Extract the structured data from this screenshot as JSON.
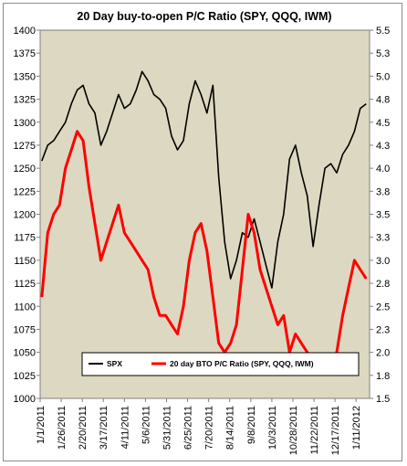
{
  "chart_data": {
    "type": "line",
    "title": "20 Day buy-to-open P/C Ratio (SPY, QQQ, IWM)",
    "xlabel": "",
    "ylabel": "",
    "ylim": [
      1000,
      1400
    ],
    "y2lim": [
      1.5,
      5.5
    ],
    "yticks": [
      1000,
      1025,
      1050,
      1075,
      1100,
      1125,
      1150,
      1175,
      1200,
      1225,
      1250,
      1275,
      1300,
      1325,
      1350,
      1375,
      1400
    ],
    "y2ticks": [
      "1.5",
      "1.8",
      "2.0",
      "2.3",
      "2.5",
      "2.8",
      "3.0",
      "3.3",
      "3.5",
      "3.8",
      "4.0",
      "4.3",
      "4.5",
      "4.8",
      "5.0",
      "5.3",
      "5.5"
    ],
    "xticks": [
      "1/1/2011",
      "1/26/2011",
      "2/20/2011",
      "3/17/2011",
      "4/11/2011",
      "5/6/2011",
      "5/31/2011",
      "6/25/2011",
      "7/20/2011",
      "8/14/2011",
      "9/8/2011",
      "10/3/2011",
      "10/28/2011",
      "11/22/2011",
      "12/17/2011",
      "1/11/2012"
    ],
    "plot_background": "#ddd8c1",
    "grid": false,
    "legend_position": "bottom",
    "series": [
      {
        "name": "SPX",
        "axis": "left",
        "color": "#000000",
        "x": [
          "2011-01-03",
          "2011-01-10",
          "2011-01-17",
          "2011-01-24",
          "2011-01-31",
          "2011-02-07",
          "2011-02-14",
          "2011-02-21",
          "2011-02-28",
          "2011-03-07",
          "2011-03-14",
          "2011-03-21",
          "2011-03-28",
          "2011-04-04",
          "2011-04-11",
          "2011-04-18",
          "2011-04-25",
          "2011-05-02",
          "2011-05-09",
          "2011-05-16",
          "2011-05-23",
          "2011-05-30",
          "2011-06-06",
          "2011-06-13",
          "2011-06-20",
          "2011-06-27",
          "2011-07-04",
          "2011-07-11",
          "2011-07-18",
          "2011-07-25",
          "2011-08-01",
          "2011-08-08",
          "2011-08-15",
          "2011-08-22",
          "2011-08-29",
          "2011-09-05",
          "2011-09-12",
          "2011-09-19",
          "2011-09-26",
          "2011-10-03",
          "2011-10-10",
          "2011-10-17",
          "2011-10-24",
          "2011-10-31",
          "2011-11-07",
          "2011-11-14",
          "2011-11-21",
          "2011-11-28",
          "2011-12-05",
          "2011-12-12",
          "2011-12-19",
          "2011-12-26",
          "2012-01-02",
          "2012-01-09",
          "2012-01-16",
          "2012-01-23"
        ],
        "values": [
          1258,
          1275,
          1280,
          1290,
          1300,
          1320,
          1335,
          1340,
          1320,
          1310,
          1275,
          1290,
          1310,
          1330,
          1315,
          1320,
          1335,
          1355,
          1345,
          1330,
          1325,
          1315,
          1285,
          1270,
          1280,
          1320,
          1345,
          1330,
          1310,
          1340,
          1240,
          1170,
          1130,
          1150,
          1180,
          1175,
          1195,
          1170,
          1145,
          1120,
          1170,
          1200,
          1260,
          1275,
          1245,
          1220,
          1165,
          1210,
          1250,
          1255,
          1245,
          1265,
          1275,
          1290,
          1315,
          1320
        ]
      },
      {
        "name": "20 day BTO P/C Ratio (SPY, QQQ, IWM)",
        "axis": "right",
        "color": "#ff0000",
        "x": [
          "2011-01-03",
          "2011-01-10",
          "2011-01-17",
          "2011-01-24",
          "2011-01-31",
          "2011-02-07",
          "2011-02-14",
          "2011-02-21",
          "2011-02-28",
          "2011-03-07",
          "2011-03-14",
          "2011-03-21",
          "2011-03-28",
          "2011-04-04",
          "2011-04-11",
          "2011-04-18",
          "2011-04-25",
          "2011-05-02",
          "2011-05-09",
          "2011-05-16",
          "2011-05-23",
          "2011-05-30",
          "2011-06-06",
          "2011-06-13",
          "2011-06-20",
          "2011-06-27",
          "2011-07-04",
          "2011-07-11",
          "2011-07-18",
          "2011-07-25",
          "2011-08-01",
          "2011-08-08",
          "2011-08-15",
          "2011-08-22",
          "2011-08-29",
          "2011-09-05",
          "2011-09-12",
          "2011-09-19",
          "2011-09-26",
          "2011-10-03",
          "2011-10-10",
          "2011-10-17",
          "2011-10-24",
          "2011-10-31",
          "2011-11-07",
          "2011-11-14",
          "2011-11-21",
          "2011-11-28",
          "2011-12-05",
          "2011-12-12",
          "2011-12-19",
          "2011-12-26",
          "2012-01-02",
          "2012-01-09",
          "2012-01-16",
          "2012-01-23"
        ],
        "values": [
          2.6,
          3.3,
          3.5,
          3.6,
          4.0,
          4.2,
          4.4,
          4.3,
          3.8,
          3.4,
          3.0,
          3.2,
          3.4,
          3.6,
          3.3,
          3.2,
          3.1,
          3.0,
          2.9,
          2.6,
          2.4,
          2.4,
          2.3,
          2.2,
          2.5,
          3.0,
          3.3,
          3.4,
          3.1,
          2.6,
          2.1,
          2.0,
          2.1,
          2.3,
          2.9,
          3.5,
          3.3,
          2.9,
          2.7,
          2.5,
          2.3,
          2.4,
          2.0,
          2.2,
          2.1,
          2.0,
          1.9,
          1.8,
          1.9,
          1.9,
          2.0,
          2.4,
          2.7,
          3.0,
          2.9,
          2.8
        ]
      }
    ]
  }
}
